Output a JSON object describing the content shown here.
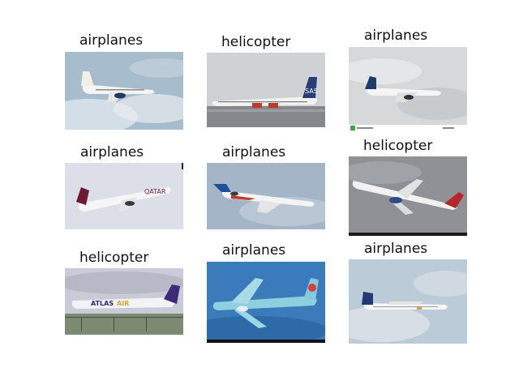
{
  "grid": {
    "cells": [
      {
        "label": "airplanes"
      },
      {
        "label": "helicopter"
      },
      {
        "label": "airplanes"
      },
      {
        "label": "airplanes"
      },
      {
        "label": "airplanes"
      },
      {
        "label": "helicopter"
      },
      {
        "label": "helicopter"
      },
      {
        "label": "airplanes"
      },
      {
        "label": "airplanes"
      }
    ]
  },
  "photos": [
    {
      "subject": "white-jet-climbing",
      "sky": "#9fb6c9"
    },
    {
      "subject": "sas-jet-on-runway",
      "sky": "#c9cdd0"
    },
    {
      "subject": "white-jet-blue-tail",
      "sky": "#d4d6d8"
    },
    {
      "subject": "qatar-jet-takeoff",
      "sky": "#d9dce6"
    },
    {
      "subject": "trijet-slovak-livery",
      "sky": "#9fb2c4"
    },
    {
      "subject": "jet-in-grey-sky",
      "sky": "#8e9095"
    },
    {
      "subject": "atlas-air-jumbo",
      "sky": "#c8cad6"
    },
    {
      "subject": "korean-air-jet",
      "sky": "#3a78b8"
    },
    {
      "subject": "turboprop-white",
      "sky": "#b7c8d6"
    }
  ]
}
